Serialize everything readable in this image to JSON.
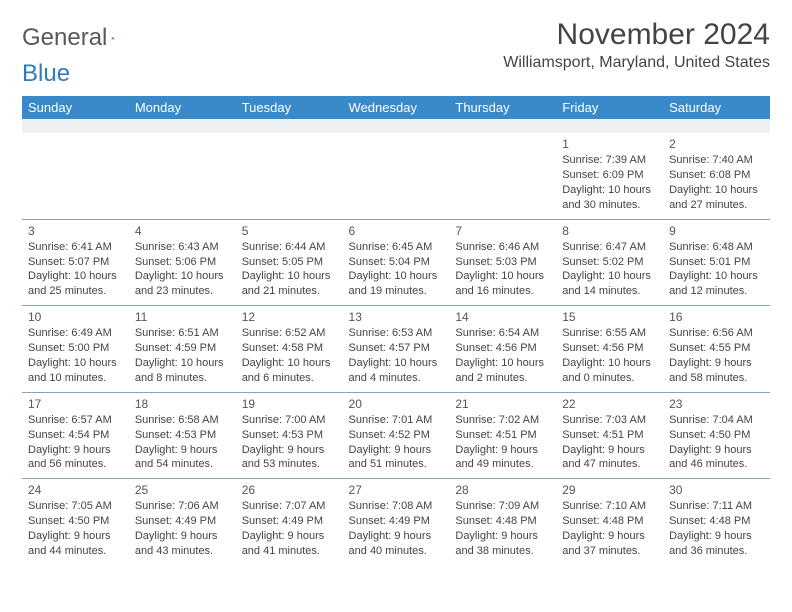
{
  "colors": {
    "header_bg": "#3a89c9",
    "header_text": "#ffffff",
    "body_text": "#444444",
    "row_border": "#8aa3b8",
    "spacer_bg": "#eef1f4",
    "logo_gray": "#585858",
    "logo_blue": "#2f7bbf",
    "page_bg": "#ffffff"
  },
  "typography": {
    "title_fontsize": 30,
    "location_fontsize": 16,
    "dayheader_fontsize": 13,
    "cell_fontsize": 11,
    "font_family": "Arial"
  },
  "logo": {
    "part1": "General",
    "part2": "Blue"
  },
  "title": "November 2024",
  "location": "Williamsport, Maryland, United States",
  "day_headers": [
    "Sunday",
    "Monday",
    "Tuesday",
    "Wednesday",
    "Thursday",
    "Friday",
    "Saturday"
  ],
  "weeks": [
    [
      null,
      null,
      null,
      null,
      null,
      {
        "n": "1",
        "sr": "Sunrise: 7:39 AM",
        "ss": "Sunset: 6:09 PM",
        "dl": "Daylight: 10 hours and 30 minutes."
      },
      {
        "n": "2",
        "sr": "Sunrise: 7:40 AM",
        "ss": "Sunset: 6:08 PM",
        "dl": "Daylight: 10 hours and 27 minutes."
      }
    ],
    [
      {
        "n": "3",
        "sr": "Sunrise: 6:41 AM",
        "ss": "Sunset: 5:07 PM",
        "dl": "Daylight: 10 hours and 25 minutes."
      },
      {
        "n": "4",
        "sr": "Sunrise: 6:43 AM",
        "ss": "Sunset: 5:06 PM",
        "dl": "Daylight: 10 hours and 23 minutes."
      },
      {
        "n": "5",
        "sr": "Sunrise: 6:44 AM",
        "ss": "Sunset: 5:05 PM",
        "dl": "Daylight: 10 hours and 21 minutes."
      },
      {
        "n": "6",
        "sr": "Sunrise: 6:45 AM",
        "ss": "Sunset: 5:04 PM",
        "dl": "Daylight: 10 hours and 19 minutes."
      },
      {
        "n": "7",
        "sr": "Sunrise: 6:46 AM",
        "ss": "Sunset: 5:03 PM",
        "dl": "Daylight: 10 hours and 16 minutes."
      },
      {
        "n": "8",
        "sr": "Sunrise: 6:47 AM",
        "ss": "Sunset: 5:02 PM",
        "dl": "Daylight: 10 hours and 14 minutes."
      },
      {
        "n": "9",
        "sr": "Sunrise: 6:48 AM",
        "ss": "Sunset: 5:01 PM",
        "dl": "Daylight: 10 hours and 12 minutes."
      }
    ],
    [
      {
        "n": "10",
        "sr": "Sunrise: 6:49 AM",
        "ss": "Sunset: 5:00 PM",
        "dl": "Daylight: 10 hours and 10 minutes."
      },
      {
        "n": "11",
        "sr": "Sunrise: 6:51 AM",
        "ss": "Sunset: 4:59 PM",
        "dl": "Daylight: 10 hours and 8 minutes."
      },
      {
        "n": "12",
        "sr": "Sunrise: 6:52 AM",
        "ss": "Sunset: 4:58 PM",
        "dl": "Daylight: 10 hours and 6 minutes."
      },
      {
        "n": "13",
        "sr": "Sunrise: 6:53 AM",
        "ss": "Sunset: 4:57 PM",
        "dl": "Daylight: 10 hours and 4 minutes."
      },
      {
        "n": "14",
        "sr": "Sunrise: 6:54 AM",
        "ss": "Sunset: 4:56 PM",
        "dl": "Daylight: 10 hours and 2 minutes."
      },
      {
        "n": "15",
        "sr": "Sunrise: 6:55 AM",
        "ss": "Sunset: 4:56 PM",
        "dl": "Daylight: 10 hours and 0 minutes."
      },
      {
        "n": "16",
        "sr": "Sunrise: 6:56 AM",
        "ss": "Sunset: 4:55 PM",
        "dl": "Daylight: 9 hours and 58 minutes."
      }
    ],
    [
      {
        "n": "17",
        "sr": "Sunrise: 6:57 AM",
        "ss": "Sunset: 4:54 PM",
        "dl": "Daylight: 9 hours and 56 minutes."
      },
      {
        "n": "18",
        "sr": "Sunrise: 6:58 AM",
        "ss": "Sunset: 4:53 PM",
        "dl": "Daylight: 9 hours and 54 minutes."
      },
      {
        "n": "19",
        "sr": "Sunrise: 7:00 AM",
        "ss": "Sunset: 4:53 PM",
        "dl": "Daylight: 9 hours and 53 minutes."
      },
      {
        "n": "20",
        "sr": "Sunrise: 7:01 AM",
        "ss": "Sunset: 4:52 PM",
        "dl": "Daylight: 9 hours and 51 minutes."
      },
      {
        "n": "21",
        "sr": "Sunrise: 7:02 AM",
        "ss": "Sunset: 4:51 PM",
        "dl": "Daylight: 9 hours and 49 minutes."
      },
      {
        "n": "22",
        "sr": "Sunrise: 7:03 AM",
        "ss": "Sunset: 4:51 PM",
        "dl": "Daylight: 9 hours and 47 minutes."
      },
      {
        "n": "23",
        "sr": "Sunrise: 7:04 AM",
        "ss": "Sunset: 4:50 PM",
        "dl": "Daylight: 9 hours and 46 minutes."
      }
    ],
    [
      {
        "n": "24",
        "sr": "Sunrise: 7:05 AM",
        "ss": "Sunset: 4:50 PM",
        "dl": "Daylight: 9 hours and 44 minutes."
      },
      {
        "n": "25",
        "sr": "Sunrise: 7:06 AM",
        "ss": "Sunset: 4:49 PM",
        "dl": "Daylight: 9 hours and 43 minutes."
      },
      {
        "n": "26",
        "sr": "Sunrise: 7:07 AM",
        "ss": "Sunset: 4:49 PM",
        "dl": "Daylight: 9 hours and 41 minutes."
      },
      {
        "n": "27",
        "sr": "Sunrise: 7:08 AM",
        "ss": "Sunset: 4:49 PM",
        "dl": "Daylight: 9 hours and 40 minutes."
      },
      {
        "n": "28",
        "sr": "Sunrise: 7:09 AM",
        "ss": "Sunset: 4:48 PM",
        "dl": "Daylight: 9 hours and 38 minutes."
      },
      {
        "n": "29",
        "sr": "Sunrise: 7:10 AM",
        "ss": "Sunset: 4:48 PM",
        "dl": "Daylight: 9 hours and 37 minutes."
      },
      {
        "n": "30",
        "sr": "Sunrise: 7:11 AM",
        "ss": "Sunset: 4:48 PM",
        "dl": "Daylight: 9 hours and 36 minutes."
      }
    ]
  ]
}
